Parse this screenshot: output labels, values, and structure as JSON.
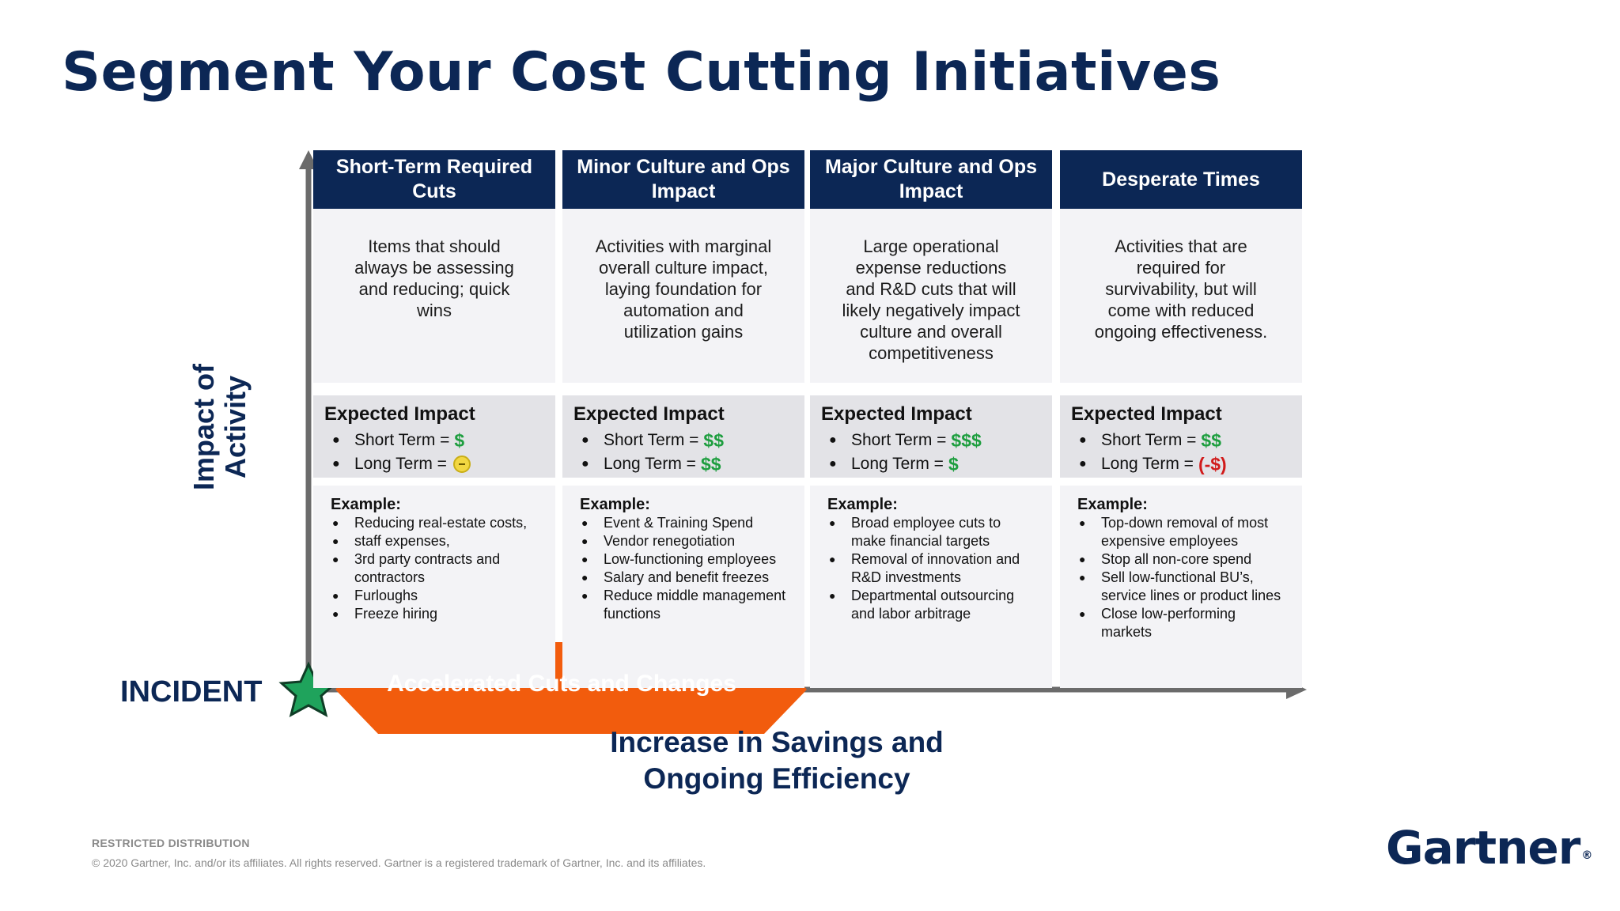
{
  "title": "Segment Your Cost Cutting Initiatives",
  "y_axis_label_line1": "Impact of",
  "y_axis_label_line2": "Activity",
  "incident_label": "INCIDENT",
  "accelerated_label": "Accelerated Cuts and Changes",
  "x_axis_label": "Increase in Savings and Ongoing Efficiency",
  "columns": [
    {
      "header": "Short-Term Required Cuts",
      "description": "Items that should always be assessing and reducing; quick wins",
      "impact_title": "Expected Impact",
      "short_term_label": "Short Term =",
      "short_term_value": "$",
      "long_term_label": "Long Term =",
      "long_term_value": "",
      "long_term_icon": "neutral-face-icon",
      "example_title": "Example:",
      "examples": [
        "Reducing real-estate costs,",
        "staff expenses,",
        "3rd party contracts and contractors",
        "Furloughs",
        "Freeze hiring"
      ]
    },
    {
      "header": "Minor Culture and Ops Impact",
      "description": "Activities with marginal overall culture impact, laying foundation for automation and utilization gains",
      "impact_title": "Expected Impact",
      "short_term_label": "Short Term =",
      "short_term_value": "$$",
      "long_term_label": "Long Term =",
      "long_term_value": "$$",
      "example_title": "Example:",
      "examples": [
        "Event & Training Spend",
        "Vendor renegotiation",
        "Low-functioning employees",
        "Salary and benefit freezes",
        "Reduce middle management functions"
      ]
    },
    {
      "header": "Major Culture and Ops Impact",
      "description": "Large operational expense reductions and R&D cuts that will likely negatively impact culture and overall competitiveness",
      "impact_title": "Expected Impact",
      "short_term_label": "Short Term =",
      "short_term_value": "$$$",
      "long_term_label": "Long Term =",
      "long_term_value": "$",
      "example_title": "Example:",
      "examples": [
        "Broad employee cuts to make financial targets",
        "Removal of innovation and R&D investments",
        "Departmental outsourcing and labor arbitrage"
      ]
    },
    {
      "header": "Desperate Times",
      "description": "Activities that are required for survivability, but will come with reduced ongoing effectiveness.",
      "impact_title": "Expected Impact",
      "short_term_label": "Short Term =",
      "short_term_value": "$$",
      "long_term_label": "Long Term =",
      "long_term_value": "(-$)",
      "example_title": "Example:",
      "examples": [
        "Top-down removal of most expensive employees",
        "Stop all non-core spend",
        "Sell low-functional BU’s, service lines or product lines",
        "Close low-performing markets"
      ]
    }
  ],
  "footer_restricted": "RESTRICTED DISTRIBUTION",
  "footer_copyright": "© 2020 Gartner, Inc. and/or its affiliates. All rights reserved. Gartner is a registered trademark of Gartner, Inc. and its affiliates.",
  "logo_text": "Gartner",
  "logo_mark": "®",
  "colors": {
    "navy": "#0c2755",
    "orange": "#f25c0d",
    "green_value": "#1e9e3f",
    "red_value": "#d11b1b",
    "star_green": "#1fa35c"
  }
}
